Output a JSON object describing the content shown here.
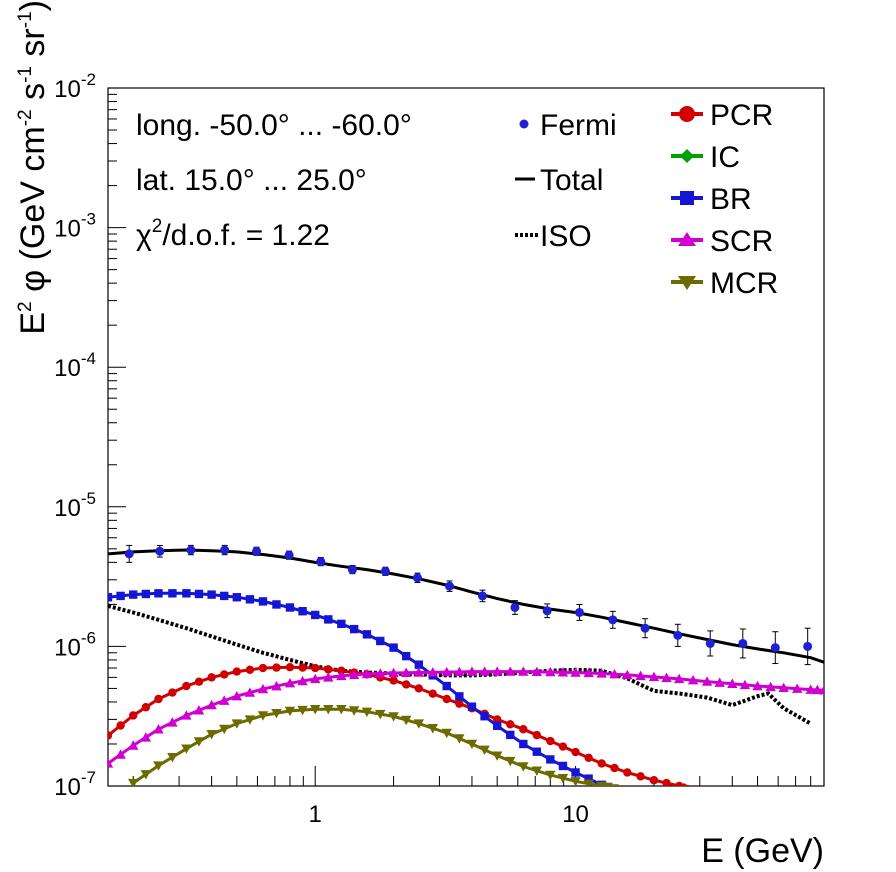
{
  "chart_data": {
    "type": "line",
    "xlabel": "E (GeV)",
    "ylabel_parts": {
      "E": "E",
      "E_exp": "2",
      "phi": " φ (GeV cm",
      "cm_exp": "-2",
      "s": " s",
      "s_exp": "-1",
      "sr": " sr",
      "sr_exp": "-1",
      "close": ")"
    },
    "xscale": "log",
    "yscale": "log",
    "xlim": [
      0.16,
      90
    ],
    "ylim": [
      1e-07,
      0.01
    ],
    "x_ticks": [
      {
        "value": 1,
        "label": "1"
      },
      {
        "value": 10,
        "label": "10"
      }
    ],
    "y_ticks": [
      {
        "value": 1e-07,
        "base": "10",
        "exp": "-7"
      },
      {
        "value": 1e-06,
        "base": "10",
        "exp": "-6"
      },
      {
        "value": 1e-05,
        "base": "10",
        "exp": "-5"
      },
      {
        "value": 0.0001,
        "base": "10",
        "exp": "-4"
      },
      {
        "value": 0.001,
        "base": "10",
        "exp": "-3"
      },
      {
        "value": 0.01,
        "base": "10",
        "exp": "-2"
      }
    ],
    "annotations": {
      "longitude": "long. -50.0° ... -60.0°",
      "latitude": "lat. 15.0° ... 25.0°",
      "chi_symbol": "χ",
      "chi_exp": "2",
      "chi_rest": "/d.o.f. = 1.22"
    },
    "legend": {
      "placement": "top-right",
      "entries": [
        {
          "label": "Fermi",
          "style": "marker-circle",
          "color": "#1f1fd6"
        },
        {
          "label": "Total",
          "style": "line-solid",
          "color": "#000000"
        },
        {
          "label": "ISO",
          "style": "line-dotted",
          "color": "#000000"
        },
        {
          "label": "PCR",
          "style": "circle",
          "color": "#d00000"
        },
        {
          "label": "IC",
          "style": "diamond",
          "color": "#00a000"
        },
        {
          "label": "BR",
          "style": "square",
          "color": "#1515d6"
        },
        {
          "label": "SCR",
          "style": "triangle-up",
          "color": "#d000d0"
        },
        {
          "label": "MCR",
          "style": "triangle-down",
          "color": "#6b6b00"
        }
      ]
    },
    "fermi": {
      "name": "Fermi",
      "color": "#1f1fd6",
      "x": [
        0.193,
        0.253,
        0.333,
        0.449,
        0.595,
        0.794,
        1.05,
        1.39,
        1.86,
        2.47,
        3.28,
        4.39,
        5.85,
        7.78,
        10.35,
        13.9,
        18.5,
        24.7,
        32.9,
        43.9,
        58.5,
        77.9
      ],
      "y": [
        4.6e-06,
        4.8e-06,
        4.9e-06,
        4.9e-06,
        4.8e-06,
        4.5e-06,
        4.05e-06,
        3.55e-06,
        3.45e-06,
        3.1e-06,
        2.7e-06,
        2.3e-06,
        1.9e-06,
        1.8e-06,
        1.75e-06,
        1.55e-06,
        1.35e-06,
        1.2e-06,
        1.05e-06,
        1.05e-06,
        9.8e-07,
        1e-06
      ],
      "err": [
        0.15,
        0.1,
        0.08,
        0.08,
        0.07,
        0.07,
        0.07,
        0.07,
        0.07,
        0.08,
        0.09,
        0.1,
        0.12,
        0.12,
        0.14,
        0.15,
        0.17,
        0.2,
        0.23,
        0.27,
        0.3,
        0.35
      ]
    },
    "series": [
      {
        "name": "Total",
        "color": "#000000",
        "style": "solid",
        "x": [
          0.16,
          0.2,
          0.25,
          0.32,
          0.4,
          0.5,
          0.63,
          0.8,
          1.0,
          1.26,
          1.58,
          2.0,
          2.5,
          3.2,
          4.0,
          5.0,
          6.3,
          8.0,
          10,
          12.6,
          15.8,
          20,
          25,
          32,
          40,
          50,
          63,
          80,
          90
        ],
        "y": [
          4.6e-06,
          4.75e-06,
          4.85e-06,
          4.9e-06,
          4.85e-06,
          4.75e-06,
          4.55e-06,
          4.3e-06,
          4e-06,
          3.75e-06,
          3.55e-06,
          3.3e-06,
          3.05e-06,
          2.75e-06,
          2.45e-06,
          2.2e-06,
          2e-06,
          1.85e-06,
          1.75e-06,
          1.62e-06,
          1.48e-06,
          1.35e-06,
          1.23e-06,
          1.12e-06,
          1.03e-06,
          9.6e-07,
          9e-07,
          8.3e-07,
          7.7e-07
        ]
      },
      {
        "name": "ISO",
        "color": "#000000",
        "style": "dotted",
        "x": [
          0.16,
          0.2,
          0.25,
          0.32,
          0.4,
          0.5,
          0.63,
          0.8,
          1.0,
          1.26,
          1.58,
          2.0,
          2.5,
          3.2,
          4.0,
          5.0,
          6.3,
          8.0,
          10,
          12.6,
          15.8,
          20,
          25,
          32,
          40,
          50,
          55,
          63,
          80
        ],
        "y": [
          1.95e-06,
          1.75e-06,
          1.55e-06,
          1.35e-06,
          1.18e-06,
          1.03e-06,
          9e-07,
          8e-07,
          7.2e-07,
          6.7e-07,
          6.5e-07,
          6.4e-07,
          6.3e-07,
          6.2e-07,
          6.2e-07,
          6.3e-07,
          6.5e-07,
          6.7e-07,
          6.8e-07,
          6.7e-07,
          5.9e-07,
          4.8e-07,
          4.6e-07,
          4.3e-07,
          3.8e-07,
          4.4e-07,
          4.6e-07,
          3.6e-07,
          2.8e-07
        ]
      },
      {
        "name": "PCR",
        "color": "#d00000",
        "marker": "circle",
        "x": [
          0.16,
          0.2,
          0.25,
          0.32,
          0.4,
          0.5,
          0.63,
          0.8,
          1.0,
          1.26,
          1.58,
          2.0,
          2.5,
          3.2,
          4.0,
          5.0,
          6.3,
          8.0,
          10,
          12.6,
          15.8,
          20,
          25,
          27
        ],
        "y": [
          2.3e-07,
          3.2e-07,
          4.2e-07,
          5.2e-07,
          6e-07,
          6.6e-07,
          7e-07,
          7.1e-07,
          7e-07,
          6.7e-07,
          6.3e-07,
          5.7e-07,
          5e-07,
          4.2e-07,
          3.6e-07,
          3e-07,
          2.55e-07,
          2.1e-07,
          1.75e-07,
          1.45e-07,
          1.25e-07,
          1.1e-07,
          1e-07,
          9.5e-08
        ]
      },
      {
        "name": "BR",
        "color": "#1515d6",
        "marker": "square",
        "x": [
          0.16,
          0.2,
          0.25,
          0.32,
          0.4,
          0.5,
          0.63,
          0.8,
          1.0,
          1.26,
          1.58,
          2.0,
          2.5,
          3.2,
          4.0,
          5.0,
          6.3,
          8.0,
          10,
          12.6,
          14
        ],
        "y": [
          2.25e-06,
          2.35e-06,
          2.4e-06,
          2.4e-06,
          2.35e-06,
          2.25e-06,
          2.1e-06,
          1.9e-06,
          1.68e-06,
          1.45e-06,
          1.22e-06,
          9.8e-07,
          7.4e-07,
          5.2e-07,
          3.7e-07,
          2.7e-07,
          2e-07,
          1.55e-07,
          1.25e-07,
          1.02e-07,
          9.5e-08
        ]
      },
      {
        "name": "SCR",
        "color": "#d000d0",
        "marker": "triangle-up",
        "x": [
          0.16,
          0.2,
          0.25,
          0.32,
          0.4,
          0.5,
          0.63,
          0.8,
          1.0,
          1.26,
          1.58,
          2.0,
          2.5,
          3.2,
          4.0,
          5.0,
          6.3,
          8.0,
          10,
          12.6,
          15.8,
          20,
          25,
          32,
          40,
          50,
          63,
          80,
          90
        ],
        "y": [
          1.45e-07,
          1.95e-07,
          2.55e-07,
          3.2e-07,
          3.8e-07,
          4.4e-07,
          4.95e-07,
          5.45e-07,
          5.85e-07,
          6.15e-07,
          6.35e-07,
          6.45e-07,
          6.5e-07,
          6.55e-07,
          6.6e-07,
          6.6e-07,
          6.6e-07,
          6.55e-07,
          6.5e-07,
          6.4e-07,
          6.25e-07,
          6.05e-07,
          5.85e-07,
          5.6e-07,
          5.4e-07,
          5.2e-07,
          5.05e-07,
          4.9e-07,
          4.85e-07
        ]
      },
      {
        "name": "MCR",
        "color": "#6b6b00",
        "marker": "triangle-down",
        "x": [
          0.2,
          0.25,
          0.32,
          0.4,
          0.5,
          0.63,
          0.8,
          1.0,
          1.26,
          1.58,
          2.0,
          2.5,
          3.2,
          4.0,
          5.0,
          6.3,
          8.0,
          10,
          12.6,
          14
        ],
        "y": [
          1.05e-07,
          1.4e-07,
          1.85e-07,
          2.35e-07,
          2.8e-07,
          3.2e-07,
          3.45e-07,
          3.55e-07,
          3.55e-07,
          3.4e-07,
          3.15e-07,
          2.8e-07,
          2.4e-07,
          2e-07,
          1.65e-07,
          1.38e-07,
          1.2e-07,
          1.08e-07,
          1e-07,
          9.6e-08
        ]
      }
    ]
  }
}
